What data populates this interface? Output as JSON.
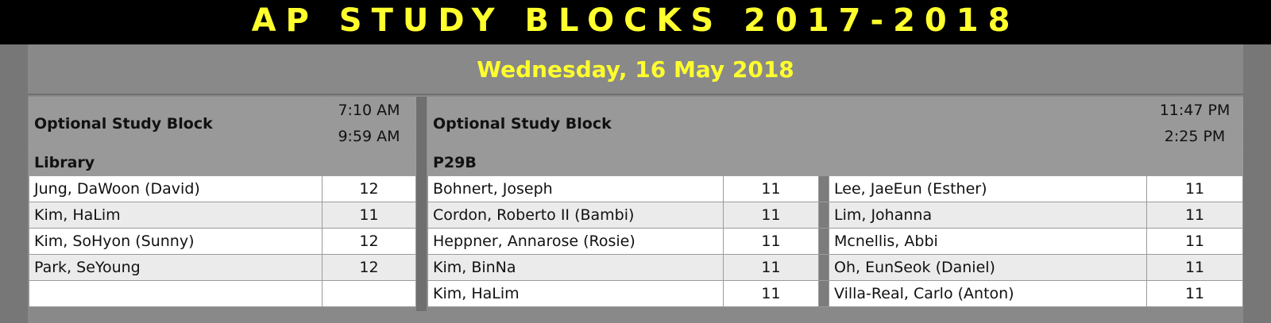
{
  "header": {
    "title": "AP STUDY BLOCKS 2017-2018",
    "date": "Wednesday, 16 May 2018",
    "accent_color": "#ffff2e"
  },
  "blocks": [
    {
      "name": "Optional Study Block",
      "start": "7:10 AM",
      "end": "9:59 AM",
      "room": "Library",
      "students": [
        {
          "name": "Jung, DaWoon (David)",
          "grade": "12"
        },
        {
          "name": "Kim, HaLim",
          "grade": "11"
        },
        {
          "name": "Kim, SoHyon (Sunny)",
          "grade": "12"
        },
        {
          "name": "Park, SeYoung",
          "grade": "12"
        }
      ]
    },
    {
      "name": "Optional Study Block",
      "start": "11:47 PM",
      "end": "2:25 PM",
      "room": "P29B",
      "students_col1": [
        {
          "name": "Bohnert, Joseph",
          "grade": "11"
        },
        {
          "name": "Cordon, Roberto II (Bambi)",
          "grade": "11"
        },
        {
          "name": "Heppner, Annarose (Rosie)",
          "grade": "11"
        },
        {
          "name": "Kim, BinNa",
          "grade": "11"
        },
        {
          "name": "Kim, HaLim",
          "grade": "11"
        }
      ],
      "students_col2": [
        {
          "name": "Lee, JaeEun (Esther)",
          "grade": "11"
        },
        {
          "name": "Lim, Johanna",
          "grade": "11"
        },
        {
          "name": "Mcnellis, Abbi",
          "grade": "11"
        },
        {
          "name": "Oh, EunSeok (Daniel)",
          "grade": "11"
        },
        {
          "name": "Villa-Real, Carlo (Anton)",
          "grade": "11"
        }
      ]
    }
  ]
}
